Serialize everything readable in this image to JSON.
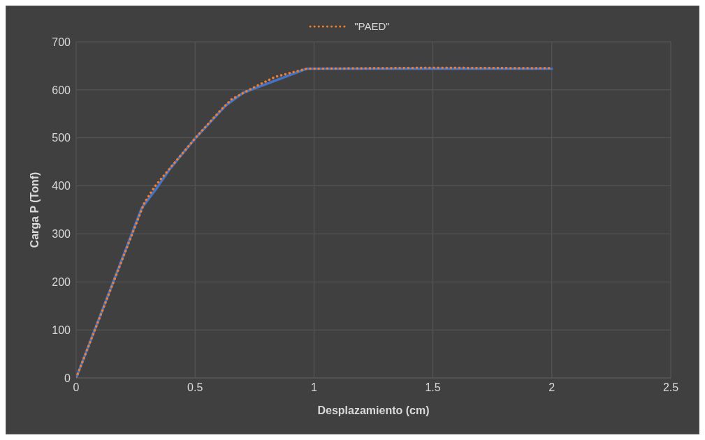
{
  "chart_data": {
    "type": "line",
    "xlabel": "Desplazamiento (cm)",
    "ylabel": "Carga P (Tonf)",
    "xlim": [
      0,
      2.5
    ],
    "xticks": [
      0,
      0.5,
      1,
      1.5,
      2,
      2.5
    ],
    "ylim": [
      0,
      700
    ],
    "yticks": [
      0,
      100,
      200,
      300,
      400,
      500,
      600,
      700
    ],
    "grid": true,
    "legend": "top",
    "marker": "none",
    "series": [
      {
        "color": "#4472c4",
        "line_style": "solid",
        "x": [
          0,
          0.276,
          0.341,
          0.395,
          0.499,
          0.628,
          0.702,
          0.969,
          1.5,
          2
        ],
        "values": [
          0,
          354,
          397,
          436,
          498,
          567,
          594,
          644,
          644,
          644
        ]
      },
      {
        "name": "\"PAED\"",
        "color": "#ed7d31",
        "line_style": "dotted",
        "x": [
          0,
          0.286,
          0.331,
          0.41,
          0.509,
          0.608,
          0.653,
          0.727,
          0.836,
          0.969,
          1.5,
          2
        ],
        "values": [
          0,
          364,
          399,
          446,
          504,
          558,
          580,
          600,
          627,
          644,
          646,
          645
        ]
      }
    ]
  }
}
